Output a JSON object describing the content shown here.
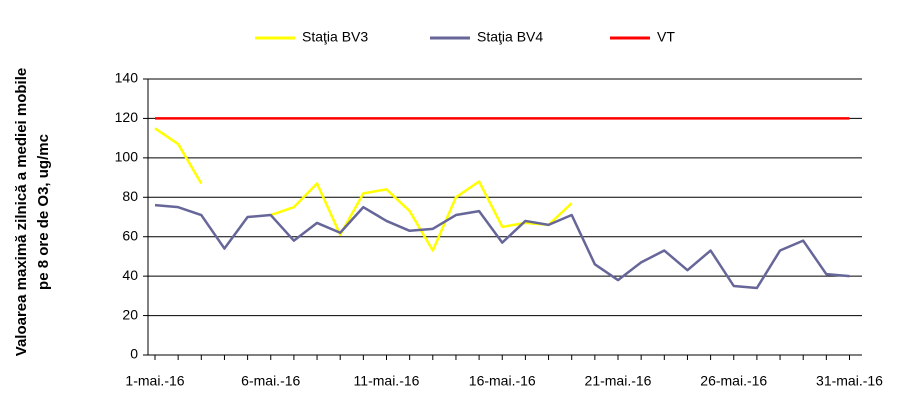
{
  "chart_data": {
    "type": "line",
    "y_label": [
      "Valoarea maximă zilnică a mediei mobile",
      "pe 8 ore de O3, ug/mc"
    ],
    "categories": [
      "1-mai.-16",
      null,
      null,
      null,
      null,
      "6-mai.-16",
      null,
      null,
      null,
      null,
      "11-mai.-16",
      null,
      null,
      null,
      null,
      "16-mai.-16",
      null,
      null,
      null,
      null,
      "21-mai.-16",
      null,
      null,
      null,
      null,
      "26-mai.-16",
      null,
      null,
      null,
      null,
      "31-mai.-16"
    ],
    "series": [
      {
        "name": "Staţia BV3",
        "color": "#ffff00",
        "values": [
          115,
          107,
          87,
          null,
          null,
          71,
          75,
          87,
          61,
          82,
          84,
          73,
          53,
          80,
          88,
          65,
          67,
          66,
          77,
          null,
          null,
          null,
          null,
          null,
          null,
          null,
          null,
          null,
          null,
          null,
          null
        ]
      },
      {
        "name": "Staţia BV4",
        "color": "#666699",
        "values": [
          76,
          75,
          71,
          54,
          70,
          71,
          58,
          67,
          62,
          75,
          68,
          63,
          64,
          71,
          73,
          57,
          68,
          66,
          71,
          46,
          38,
          47,
          53,
          43,
          53,
          35,
          34,
          53,
          58,
          41,
          40
        ]
      },
      {
        "name": "VT",
        "color": "#ff0000",
        "values": [
          120,
          120,
          120,
          120,
          120,
          120,
          120,
          120,
          120,
          120,
          120,
          120,
          120,
          120,
          120,
          120,
          120,
          120,
          120,
          120,
          120,
          120,
          120,
          120,
          120,
          120,
          120,
          120,
          120,
          120,
          120
        ]
      }
    ],
    "ylim": [
      0,
      140
    ],
    "yticks": [
      0,
      20,
      40,
      60,
      80,
      100,
      120,
      140
    ],
    "grid": true,
    "legend": "top"
  }
}
